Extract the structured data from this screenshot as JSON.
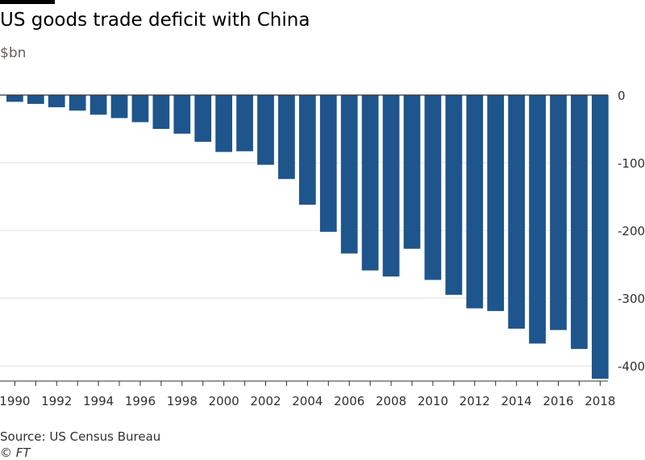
{
  "title": "US goods trade deficit with China",
  "subtitle": "$bn",
  "source": "Source: US Census Bureau",
  "credit": "© FT",
  "colors": {
    "bar": "#1e558c",
    "grid": "#e6e2dc",
    "axis": "#33302e",
    "tick_text": "#33302e"
  },
  "chart_data": {
    "type": "bar",
    "title": "US goods trade deficit with China",
    "subtitle": "$bn",
    "xlabel": "",
    "ylabel": "",
    "categories": [
      "1990",
      "1991",
      "1992",
      "1993",
      "1994",
      "1995",
      "1996",
      "1997",
      "1998",
      "1999",
      "2000",
      "2001",
      "2002",
      "2003",
      "2004",
      "2005",
      "2006",
      "2007",
      "2008",
      "2009",
      "2010",
      "2011",
      "2012",
      "2013",
      "2014",
      "2015",
      "2016",
      "2017",
      "2018"
    ],
    "values": [
      -10,
      -13,
      -18,
      -23,
      -29,
      -34,
      -40,
      -50,
      -57,
      -69,
      -84,
      -83,
      -103,
      -124,
      -162,
      -202,
      -234,
      -259,
      -268,
      -227,
      -273,
      -295,
      -315,
      -319,
      -345,
      -367,
      -347,
      -375,
      -419
    ],
    "ylim": [
      -420,
      0
    ],
    "yticks": [
      0,
      -100,
      -200,
      -300,
      -400
    ],
    "ytick_labels": [
      "0",
      "-100",
      "-200",
      "-300",
      "-400"
    ],
    "xtick_labels": [
      "1990",
      "1992",
      "1994",
      "1996",
      "1998",
      "2000",
      "2002",
      "2004",
      "2006",
      "2008",
      "2010",
      "2012",
      "2014",
      "2016",
      "2018"
    ],
    "grid": true,
    "y_axis_side": "right",
    "legend": "none"
  }
}
